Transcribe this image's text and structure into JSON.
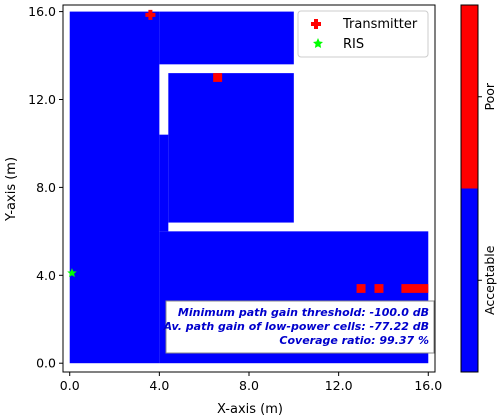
{
  "chart_data": {
    "type": "heatmap",
    "xlabel": "X-axis (m)",
    "ylabel": "Y-axis (m)",
    "xlim": [
      -0.3,
      16.3
    ],
    "ylim": [
      -0.4,
      16.3
    ],
    "xticks": [
      0.0,
      4.0,
      8.0,
      12.0,
      16.0
    ],
    "xtick_labels": [
      "0.0",
      "4.0",
      "8.0",
      "12.0",
      "16.0"
    ],
    "yticks": [
      0.0,
      4.0,
      8.0,
      12.0,
      16.0
    ],
    "ytick_labels": [
      "0.0",
      "4.0",
      "8.0",
      "12.0",
      "16.0"
    ],
    "grid": false,
    "coverage_colors": {
      "Acceptable": "#0000ff",
      "Poor": "#ff0000"
    },
    "acceptable_regions": [
      {
        "x0": 0.0,
        "x1": 4.0,
        "y0": 0.0,
        "y1": 16.0
      },
      {
        "x0": 4.0,
        "x1": 10.0,
        "y0": 13.6,
        "y1": 16.0
      },
      {
        "x0": 4.0,
        "x1": 4.4,
        "y0": 6.0,
        "y1": 10.4
      },
      {
        "x0": 4.4,
        "x1": 10.0,
        "y0": 6.4,
        "y1": 13.2
      },
      {
        "x0": 4.0,
        "x1": 16.0,
        "y0": 0.0,
        "y1": 6.0
      }
    ],
    "poor_cells": [
      {
        "x0": 6.4,
        "x1": 6.8,
        "y0": 12.8,
        "y1": 13.2
      },
      {
        "x0": 12.8,
        "x1": 13.2,
        "y0": 3.2,
        "y1": 3.6
      },
      {
        "x0": 13.6,
        "x1": 14.0,
        "y0": 3.2,
        "y1": 3.6
      },
      {
        "x0": 14.8,
        "x1": 16.0,
        "y0": 3.2,
        "y1": 3.6
      }
    ],
    "markers": [
      {
        "name": "Transmitter",
        "x": 3.6,
        "y": 15.85,
        "symbol": "plus",
        "color": "#ff0000"
      },
      {
        "name": "RIS",
        "x": 0.1,
        "y": 4.1,
        "symbol": "star",
        "color": "#00ff00"
      }
    ],
    "legend": {
      "placement": "top-right",
      "entries": [
        "Transmitter",
        "RIS"
      ]
    },
    "colorbar": {
      "categories": [
        "Acceptable",
        "Poor"
      ],
      "colors": [
        "#0000ff",
        "#ff0000"
      ],
      "range": [
        0,
        1
      ],
      "boundary": 0.5
    },
    "info_box": {
      "lines": [
        "Minimum path gain threshold: -100.0 dB",
        "Av. path gain of low-power cells: -77.22 dB",
        "Coverage ratio: 99.37 %"
      ]
    }
  }
}
